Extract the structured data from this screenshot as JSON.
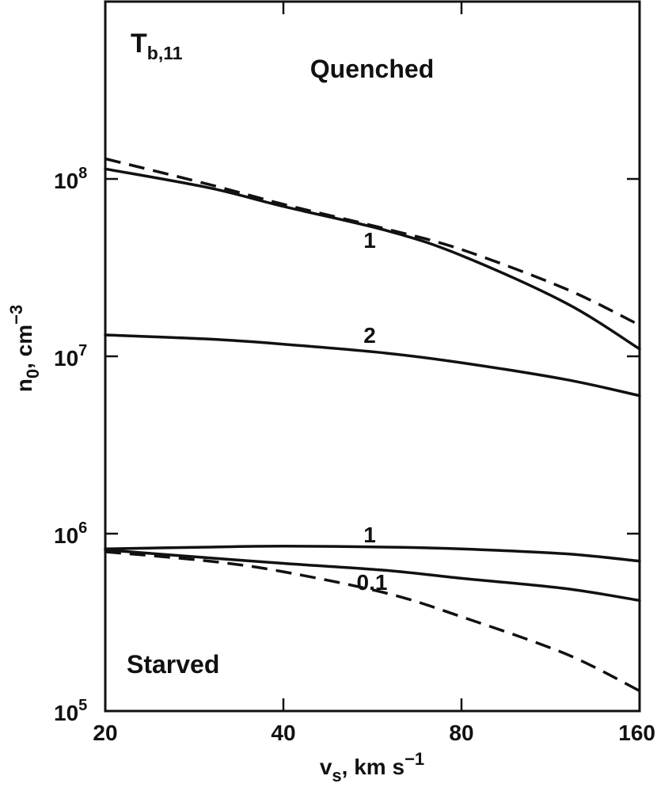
{
  "chart_data": {
    "type": "line",
    "xscale": "log",
    "yscale": "log",
    "xlim": [
      20,
      160
    ],
    "ylim": [
      100000,
      1000000000
    ],
    "grid": false,
    "xticks": [
      20,
      40,
      80,
      160
    ],
    "xtick_labels": [
      "20",
      "40",
      "80",
      "160"
    ],
    "yticks": [
      100000,
      1000000,
      10000000,
      100000000
    ],
    "ytick_labels": [
      {
        "base": "10",
        "exp": "5"
      },
      {
        "base": "10",
        "exp": "6"
      },
      {
        "base": "10",
        "exp": "7"
      },
      {
        "base": "10",
        "exp": "8"
      }
    ],
    "xlabel": {
      "main": "v",
      "sub": "s",
      "rest": ", km s",
      "sup": "−1"
    },
    "ylabel": {
      "main": "n",
      "sub": "0",
      "rest": ", cm",
      "sup": "−3"
    },
    "corner_label": {
      "main": "T",
      "sub": "b,11"
    },
    "annotations": {
      "quenched": "Quenched",
      "starved": "Starved"
    },
    "series": [
      {
        "style": "dashed",
        "label": "",
        "x": [
          20,
          30,
          40,
          60,
          80,
          120,
          160
        ],
        "y": [
          130000000,
          93000000,
          72000000,
          52000000,
          40000000,
          24000000,
          15000000
        ]
      },
      {
        "style": "solid",
        "label": "1",
        "x": [
          20,
          30,
          40,
          60,
          80,
          120,
          160
        ],
        "y": [
          114000000,
          89000000,
          70000000,
          51000000,
          37000000,
          20000000,
          11000000
        ]
      },
      {
        "style": "solid",
        "label": "2",
        "x": [
          20,
          30,
          40,
          60,
          80,
          120,
          160
        ],
        "y": [
          13200000,
          12500000,
          11700000,
          10400000,
          9200000,
          7400000,
          6000000
        ]
      },
      {
        "style": "solid",
        "label": "1",
        "x": [
          20,
          30,
          40,
          60,
          80,
          120,
          160
        ],
        "y": [
          820000,
          840000,
          850000,
          840000,
          820000,
          770000,
          700000
        ]
      },
      {
        "style": "solid",
        "label": "0.1",
        "x": [
          20,
          30,
          40,
          60,
          80,
          120,
          160
        ],
        "y": [
          810000,
          730000,
          680000,
          620000,
          560000,
          490000,
          420000
        ]
      },
      {
        "style": "dashed",
        "label": "",
        "x": [
          20,
          30,
          40,
          60,
          80,
          120,
          160
        ],
        "y": [
          790000,
          700000,
          610000,
          460000,
          340000,
          210000,
          130000
        ]
      }
    ]
  }
}
